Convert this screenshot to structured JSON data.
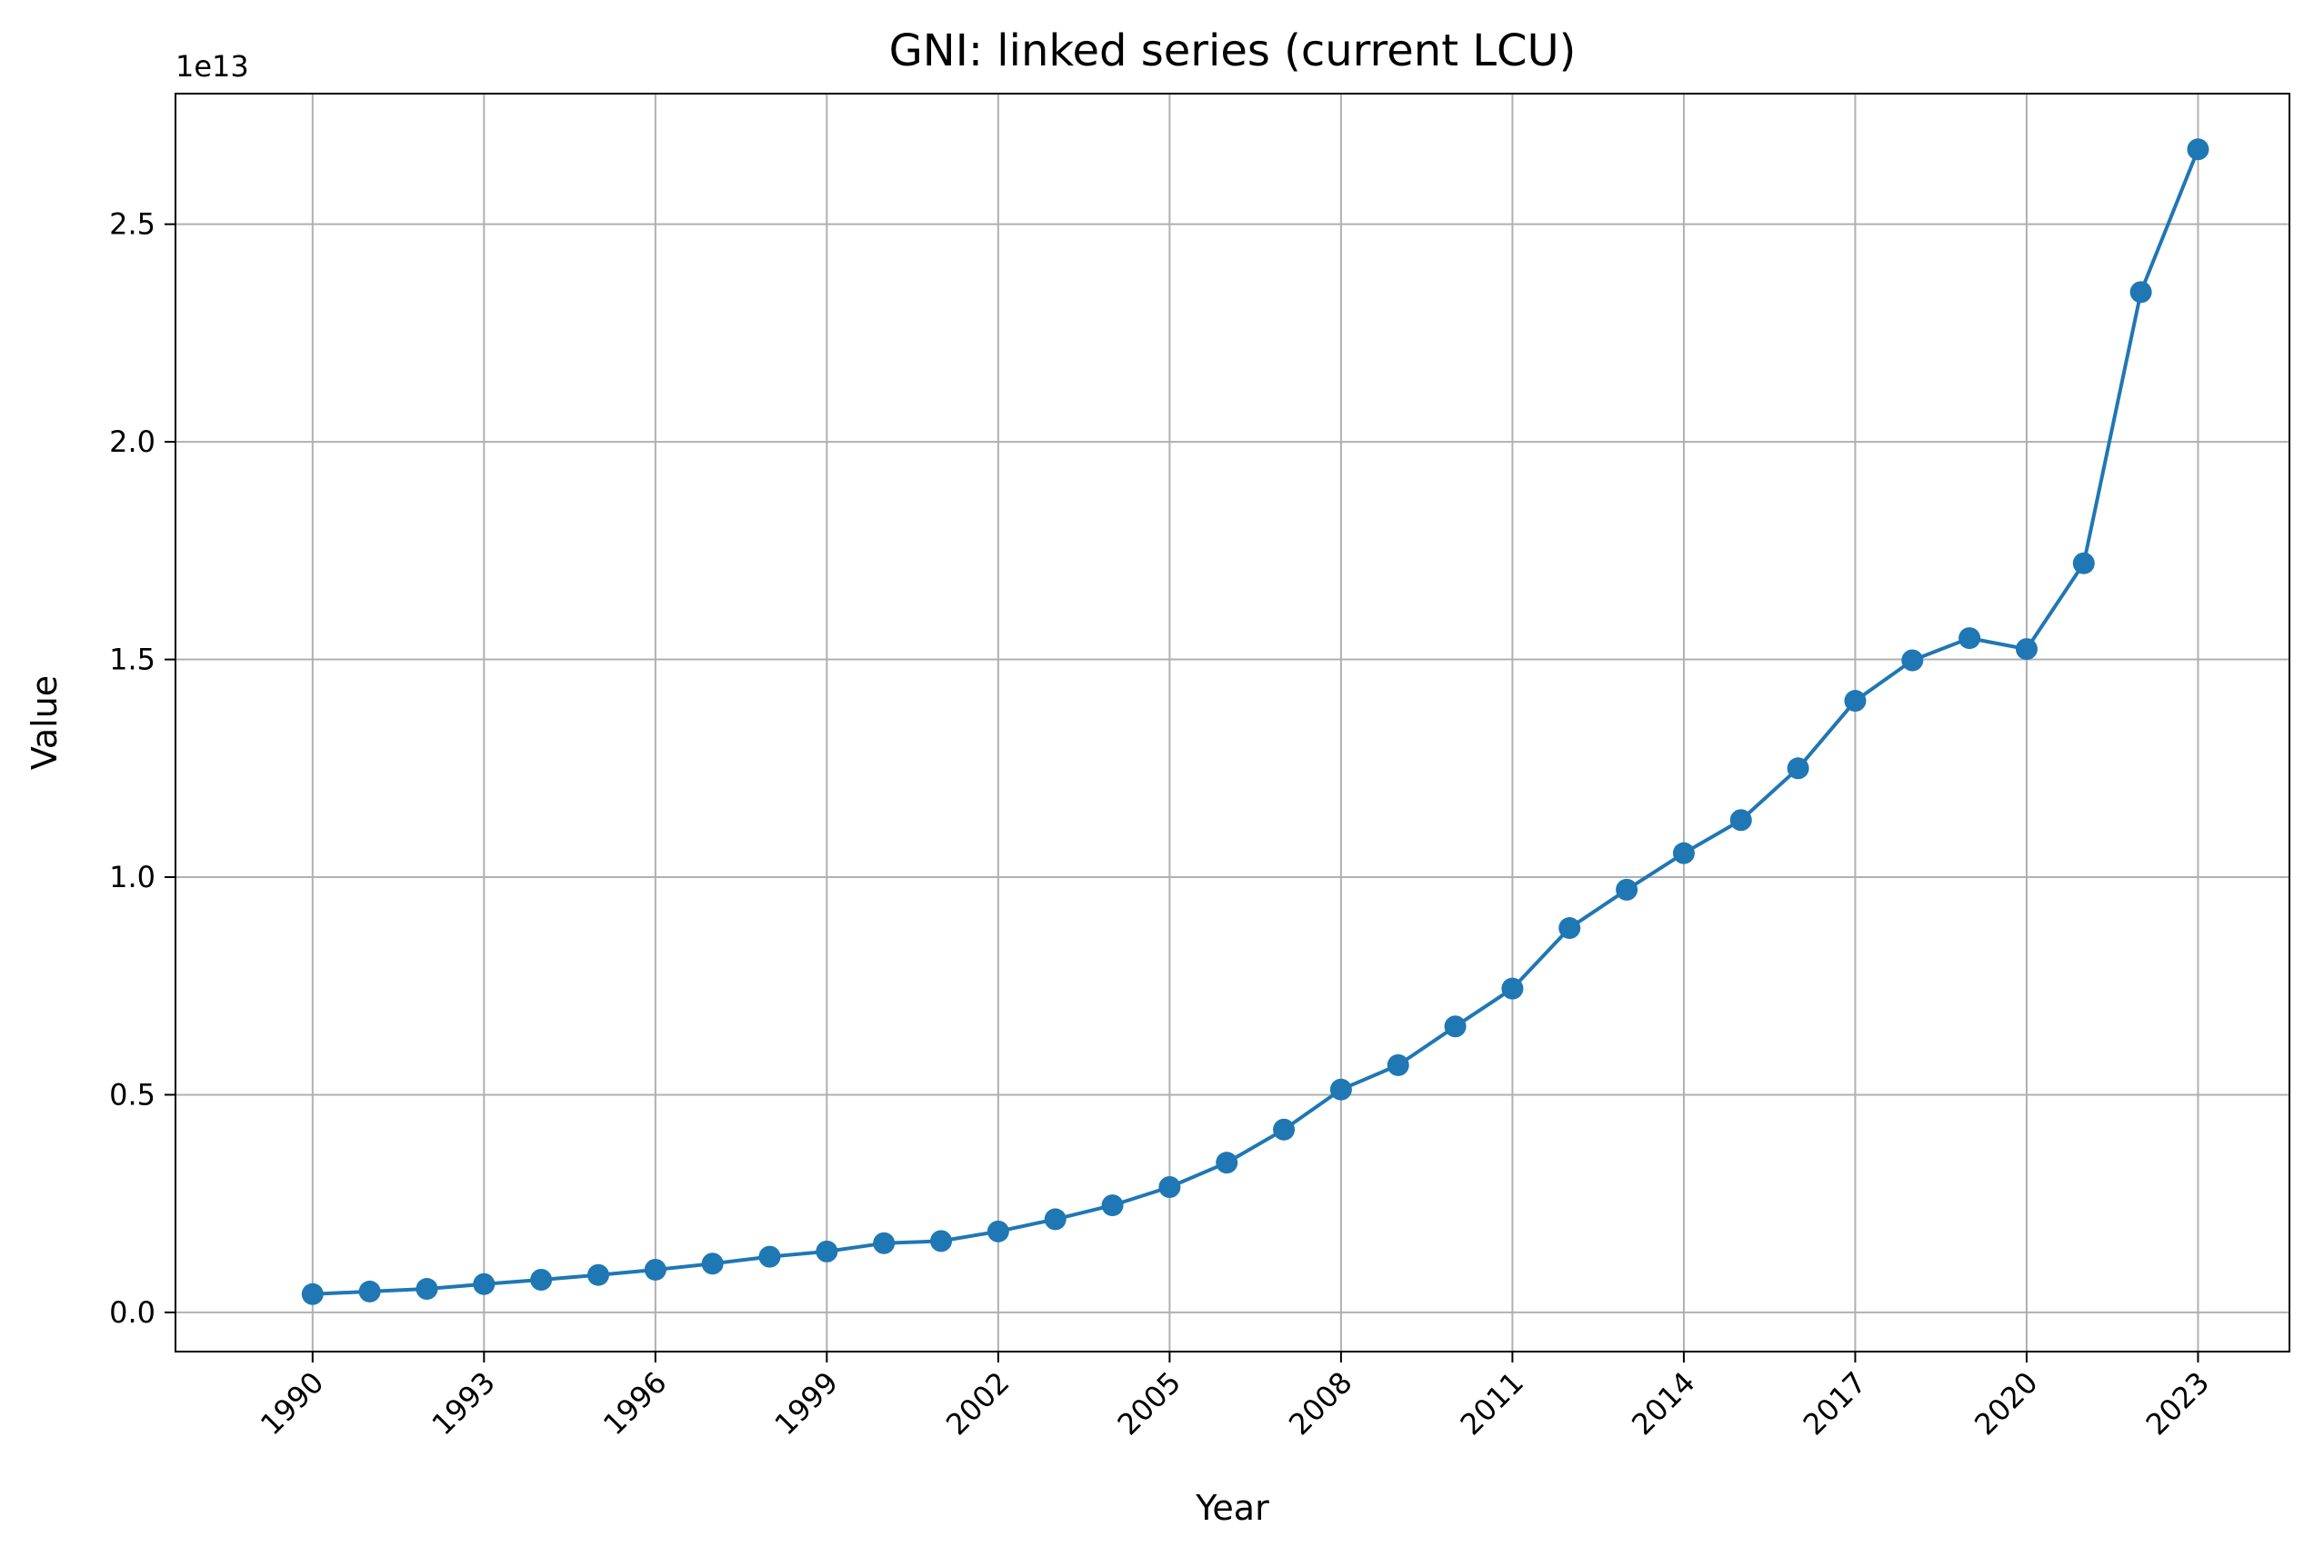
{
  "colors": {
    "series": "#1f77b4",
    "grid": "#b0b0b0",
    "axes": "#000000"
  },
  "chart_data": {
    "type": "line",
    "title": "GNI: linked series (current LCU)",
    "xlabel": "Year",
    "ylabel": "Value",
    "y_offset_label": "1e13",
    "y_scale_factor": 10000000000000.0,
    "grid": true,
    "legend": "none",
    "xlim": [
      1987.6,
      2024.6
    ],
    "ylim": [
      -0.09,
      2.8
    ],
    "x_ticks": [
      1990,
      1993,
      1996,
      1999,
      2002,
      2005,
      2008,
      2011,
      2014,
      2017,
      2020,
      2023
    ],
    "x_tick_labels": [
      "1990",
      "1993",
      "1996",
      "1999",
      "2002",
      "2005",
      "2008",
      "2011",
      "2014",
      "2017",
      "2020",
      "2023"
    ],
    "y_ticks": [
      0.0,
      0.5,
      1.0,
      1.5,
      2.0,
      2.5
    ],
    "y_tick_labels": [
      "0.0",
      "0.5",
      "1.0",
      "1.5",
      "2.0",
      "2.5"
    ],
    "series": [
      {
        "x": [
          1990,
          1991,
          1992,
          1993,
          1994,
          1995,
          1996,
          1997,
          1998,
          1999,
          2000,
          2001,
          2002,
          2003,
          2004,
          2005,
          2006,
          2007,
          2008,
          2009,
          2010,
          2011,
          2012,
          2013,
          2014,
          2015,
          2016,
          2017,
          2018,
          2019,
          2020,
          2021,
          2022,
          2023
        ],
        "values": [
          0.042,
          0.048,
          0.054,
          0.065,
          0.075,
          0.086,
          0.098,
          0.112,
          0.128,
          0.14,
          0.159,
          0.164,
          0.186,
          0.214,
          0.246,
          0.288,
          0.344,
          0.42,
          0.512,
          0.568,
          0.657,
          0.744,
          0.883,
          0.971,
          1.055,
          1.131,
          1.25,
          1.405,
          1.498,
          1.549,
          1.524,
          1.721,
          2.344,
          2.672
        ]
      }
    ]
  }
}
